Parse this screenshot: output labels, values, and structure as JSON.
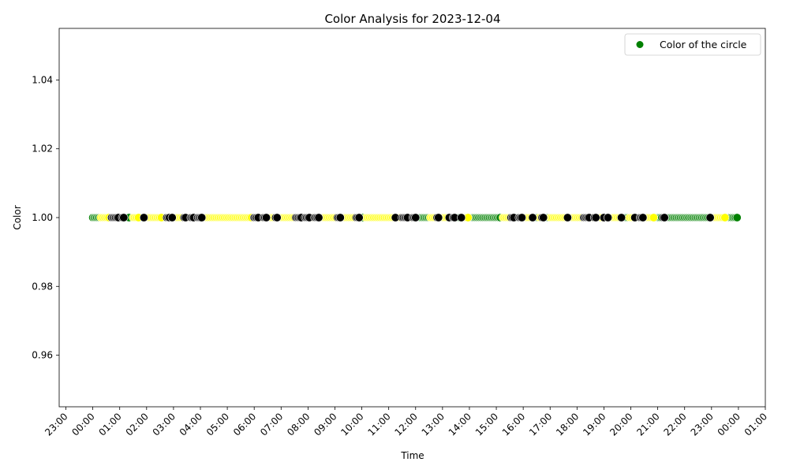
{
  "chart_data": {
    "type": "scatter",
    "title": "Color Analysis for 2023-12-04",
    "xlabel": "Time",
    "ylabel": "Color",
    "xlim_hours": [
      -1.25,
      25.0
    ],
    "ylim": [
      0.945,
      1.055
    ],
    "y_ticks": [
      0.96,
      0.98,
      1.0,
      1.02,
      1.04
    ],
    "y_tick_labels": [
      "0.96",
      "0.98",
      "1.00",
      "1.02",
      "1.04"
    ],
    "x_tick_hours": [
      -1,
      0,
      1,
      2,
      3,
      4,
      5,
      6,
      7,
      8,
      9,
      10,
      11,
      12,
      13,
      14,
      15,
      16,
      17,
      18,
      19,
      20,
      21,
      22,
      23,
      24,
      25
    ],
    "x_tick_labels": [
      "23:00",
      "00:00",
      "01:00",
      "02:00",
      "03:00",
      "04:00",
      "05:00",
      "06:00",
      "07:00",
      "08:00",
      "09:00",
      "10:00",
      "11:00",
      "12:00",
      "13:00",
      "14:00",
      "15:00",
      "16:00",
      "17:00",
      "18:00",
      "19:00",
      "20:00",
      "21:00",
      "22:00",
      "23:00",
      "00:00",
      "01:00"
    ],
    "legend": {
      "label": "Color of the circle",
      "color": "#008000",
      "placement": "upper right"
    },
    "grid": false,
    "colors": {
      "green": "#008000",
      "yellow": "#ffff00",
      "black": "#000000"
    },
    "series": [
      {
        "color": "green",
        "values": [
          0.0,
          0.05,
          0.1,
          0.15,
          0.2,
          0.25,
          1.2,
          1.25,
          1.3,
          1.35,
          1.75,
          1.8,
          1.85,
          2.6,
          2.65,
          2.7,
          2.9,
          9.95,
          10.0,
          10.05,
          12.05,
          12.1,
          12.15,
          12.2,
          12.25,
          12.3,
          12.35,
          12.4,
          12.45,
          12.5,
          13.3,
          13.35,
          13.5,
          13.55,
          13.6,
          13.65,
          14.0,
          14.05,
          14.1,
          14.15,
          14.2,
          14.25,
          14.3,
          14.35,
          14.4,
          14.45,
          14.5,
          14.55,
          14.6,
          14.65,
          14.7,
          14.75,
          14.8,
          14.85,
          14.9,
          14.95,
          15.0,
          15.05,
          15.1,
          15.15,
          15.7,
          15.75,
          15.8,
          16.0,
          16.05,
          16.4,
          16.45,
          16.5,
          16.55,
          16.8,
          16.85,
          16.9,
          16.95,
          19.05,
          19.1,
          19.7,
          19.75,
          19.8,
          19.85,
          19.9,
          20.2,
          20.25,
          20.3,
          20.9,
          20.95,
          21.0,
          21.05,
          21.1,
          21.15,
          21.3,
          21.35,
          21.4,
          21.45,
          21.5,
          21.55,
          21.6,
          21.65,
          21.7,
          21.75,
          21.8,
          21.85,
          21.9,
          21.95,
          22.0,
          22.05,
          22.1,
          22.15,
          22.2,
          22.25,
          22.3,
          22.35,
          22.4,
          22.45,
          22.5,
          22.55,
          22.6,
          22.65,
          22.7,
          22.75,
          22.8,
          22.85,
          22.9,
          23.55,
          23.6,
          23.65,
          23.7,
          23.75,
          23.8,
          23.85,
          23.9,
          23.95
        ]
      },
      {
        "color": "yellow",
        "values": [
          0.3,
          0.35,
          0.4,
          0.45,
          0.5,
          0.55,
          0.6,
          1.0,
          1.05,
          1.5,
          1.55,
          1.6,
          1.65,
          1.7,
          1.95,
          2.0,
          2.05,
          2.1,
          2.15,
          2.2,
          2.25,
          2.3,
          2.35,
          2.4,
          2.45,
          2.5,
          2.55,
          3.0,
          3.05,
          3.1,
          3.15,
          3.2,
          3.25,
          3.3,
          3.35,
          3.5,
          3.55,
          3.6,
          3.8,
          3.85,
          4.1,
          4.15,
          4.2,
          4.25,
          4.3,
          4.35,
          4.4,
          4.45,
          4.5,
          4.55,
          4.6,
          4.65,
          4.7,
          4.75,
          4.8,
          4.85,
          4.9,
          4.95,
          5.0,
          5.05,
          5.1,
          5.15,
          5.2,
          5.25,
          5.3,
          5.35,
          5.4,
          5.45,
          5.5,
          5.55,
          5.6,
          5.65,
          5.7,
          5.75,
          5.8,
          5.85,
          5.9,
          6.2,
          6.25,
          6.3,
          6.5,
          6.55,
          6.6,
          6.65,
          6.7,
          6.75,
          6.9,
          6.95,
          7.0,
          7.05,
          7.1,
          7.15,
          7.2,
          7.25,
          7.3,
          7.35,
          7.4,
          7.45,
          7.5,
          7.8,
          7.85,
          8.1,
          8.15,
          8.2,
          8.45,
          8.5,
          8.55,
          8.6,
          8.65,
          8.7,
          8.75,
          8.8,
          8.85,
          8.9,
          8.95,
          9.0,
          9.05,
          9.25,
          9.3,
          9.35,
          9.4,
          9.45,
          9.5,
          9.55,
          9.6,
          9.65,
          9.7,
          9.75,
          10.15,
          10.2,
          10.25,
          10.3,
          10.35,
          10.4,
          10.45,
          10.5,
          10.55,
          10.6,
          10.65,
          10.7,
          10.75,
          10.8,
          10.85,
          10.9,
          10.95,
          11.0,
          11.05,
          11.1,
          11.15,
          11.2,
          11.3,
          11.35,
          11.4,
          11.45,
          11.75,
          11.8,
          11.85,
          12.55,
          12.6,
          12.65,
          12.7,
          12.75,
          12.9,
          12.95,
          13.0,
          13.05,
          13.1,
          13.15,
          13.2,
          13.75,
          13.8,
          13.85,
          13.9,
          13.95,
          15.25,
          15.3,
          15.35,
          15.4,
          15.45,
          15.5,
          16.1,
          16.15,
          16.2,
          16.25,
          16.3,
          16.6,
          16.65,
          17.0,
          17.05,
          17.1,
          17.15,
          17.2,
          17.25,
          17.3,
          17.35,
          17.4,
          17.45,
          17.5,
          17.55,
          17.6,
          17.7,
          17.75,
          17.8,
          17.85,
          17.9,
          17.95,
          18.0,
          18.05,
          18.1,
          18.15,
          18.2,
          18.5,
          18.55,
          18.6,
          18.75,
          18.8,
          18.85,
          18.9,
          18.95,
          19.2,
          19.25,
          19.3,
          19.35,
          19.4,
          19.45,
          19.5,
          19.55,
          19.6,
          19.95,
          20.0,
          20.05,
          20.1,
          20.5,
          20.55,
          20.6,
          20.65,
          20.7,
          20.75,
          20.8,
          20.85,
          23.0,
          23.05,
          23.1,
          23.15,
          23.2,
          23.25,
          23.3,
          23.35,
          23.4,
          23.45,
          23.5
        ]
      },
      {
        "color": "black",
        "values": [
          0.7,
          0.75,
          0.8,
          0.85,
          0.9,
          0.95,
          1.1,
          1.15,
          1.9,
          2.75,
          2.8,
          2.85,
          2.95,
          3.4,
          3.45,
          3.65,
          3.7,
          3.75,
          3.9,
          3.95,
          4.0,
          4.05,
          6.0,
          6.05,
          6.1,
          6.15,
          6.35,
          6.4,
          6.45,
          6.8,
          6.85,
          7.55,
          7.6,
          7.65,
          7.7,
          7.75,
          7.9,
          7.95,
          8.0,
          8.05,
          8.25,
          8.3,
          8.35,
          8.4,
          9.1,
          9.15,
          9.2,
          9.8,
          9.85,
          9.9,
          11.25,
          11.5,
          11.55,
          11.6,
          11.65,
          11.7,
          11.9,
          11.95,
          12.0,
          12.8,
          12.85,
          13.25,
          13.4,
          13.45,
          13.7,
          15.55,
          15.6,
          15.65,
          15.85,
          15.9,
          15.95,
          16.35,
          16.7,
          16.75,
          17.65,
          18.25,
          18.3,
          18.35,
          18.4,
          18.45,
          18.65,
          18.7,
          19.0,
          19.15,
          19.65,
          20.15,
          20.35,
          20.4,
          20.45,
          21.2,
          21.25,
          22.95
        ]
      }
    ],
    "y_value": 1.0
  }
}
